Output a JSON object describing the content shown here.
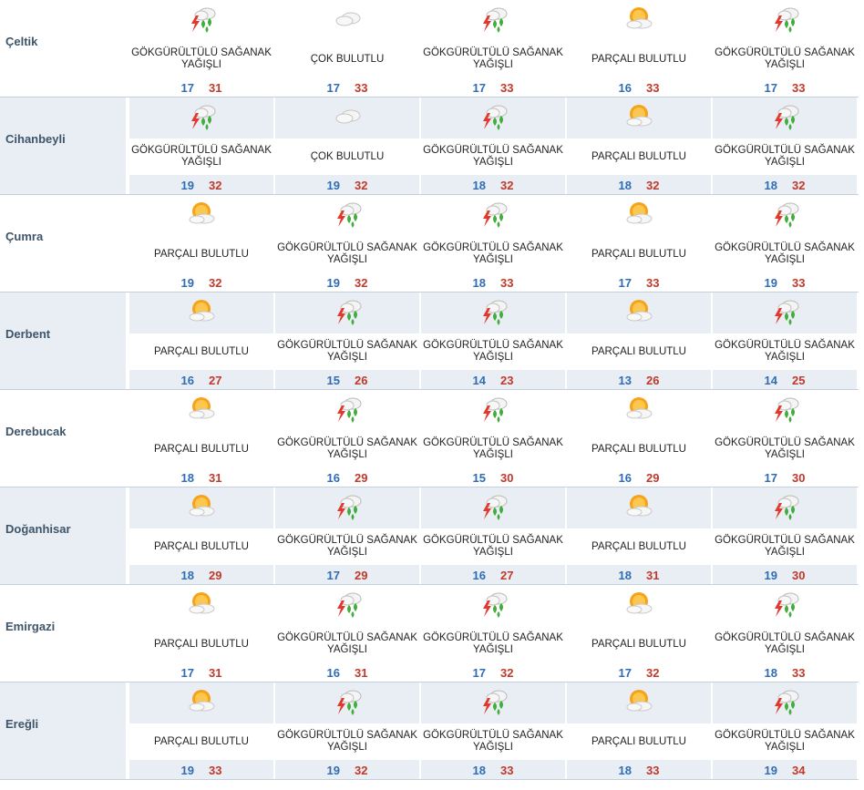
{
  "conditions": {
    "storm": "GÖKGÜRÜLTÜLÜ\nSAĞANAK YAĞIŞLI",
    "cloudy": "ÇOK BULUTLU",
    "partly": "PARÇALI BULUTLU"
  },
  "icons": {
    "storm": "thunderstorm-rain-icon",
    "cloudy": "cloud-icon",
    "partly": "sun-cloud-icon"
  },
  "rows": [
    {
      "city": "Çeltik",
      "days": [
        {
          "cond": "GÖKGÜRÜLTÜLÜ SAĞANAK YAĞIŞLI",
          "icon": "storm",
          "min": "17",
          "max": "31"
        },
        {
          "cond": "ÇOK BULUTLU",
          "icon": "cloudy",
          "min": "17",
          "max": "33"
        },
        {
          "cond": "GÖKGÜRÜLTÜLÜ SAĞANAK YAĞIŞLI",
          "icon": "storm",
          "min": "17",
          "max": "33"
        },
        {
          "cond": "PARÇALI BULUTLU",
          "icon": "partly",
          "min": "16",
          "max": "33"
        },
        {
          "cond": "GÖKGÜRÜLTÜLÜ SAĞANAK YAĞIŞLI",
          "icon": "storm",
          "min": "17",
          "max": "33"
        }
      ]
    },
    {
      "city": "Cihanbeyli",
      "days": [
        {
          "cond": "GÖKGÜRÜLTÜLÜ SAĞANAK YAĞIŞLI",
          "icon": "storm",
          "min": "19",
          "max": "32"
        },
        {
          "cond": "ÇOK BULUTLU",
          "icon": "cloudy",
          "min": "19",
          "max": "32"
        },
        {
          "cond": "GÖKGÜRÜLTÜLÜ SAĞANAK YAĞIŞLI",
          "icon": "storm",
          "min": "18",
          "max": "32"
        },
        {
          "cond": "PARÇALI BULUTLU",
          "icon": "partly",
          "min": "18",
          "max": "32"
        },
        {
          "cond": "GÖKGÜRÜLTÜLÜ SAĞANAK YAĞIŞLI",
          "icon": "storm",
          "min": "18",
          "max": "32"
        }
      ]
    },
    {
      "city": "Çumra",
      "days": [
        {
          "cond": "PARÇALI BULUTLU",
          "icon": "partly",
          "min": "19",
          "max": "32"
        },
        {
          "cond": "GÖKGÜRÜLTÜLÜ SAĞANAK YAĞIŞLI",
          "icon": "storm",
          "min": "19",
          "max": "32"
        },
        {
          "cond": "GÖKGÜRÜLTÜLÜ SAĞANAK YAĞIŞLI",
          "icon": "storm",
          "min": "18",
          "max": "33"
        },
        {
          "cond": "PARÇALI BULUTLU",
          "icon": "partly",
          "min": "17",
          "max": "33"
        },
        {
          "cond": "GÖKGÜRÜLTÜLÜ SAĞANAK YAĞIŞLI",
          "icon": "storm",
          "min": "19",
          "max": "33"
        }
      ]
    },
    {
      "city": "Derbent",
      "days": [
        {
          "cond": "PARÇALI BULUTLU",
          "icon": "partly",
          "min": "16",
          "max": "27"
        },
        {
          "cond": "GÖKGÜRÜLTÜLÜ SAĞANAK YAĞIŞLI",
          "icon": "storm",
          "min": "15",
          "max": "26"
        },
        {
          "cond": "GÖKGÜRÜLTÜLÜ SAĞANAK YAĞIŞLI",
          "icon": "storm",
          "min": "14",
          "max": "23"
        },
        {
          "cond": "PARÇALI BULUTLU",
          "icon": "partly",
          "min": "13",
          "max": "26"
        },
        {
          "cond": "GÖKGÜRÜLTÜLÜ SAĞANAK YAĞIŞLI",
          "icon": "storm",
          "min": "14",
          "max": "25"
        }
      ]
    },
    {
      "city": "Derebucak",
      "days": [
        {
          "cond": "PARÇALI BULUTLU",
          "icon": "partly",
          "min": "18",
          "max": "31"
        },
        {
          "cond": "GÖKGÜRÜLTÜLÜ SAĞANAK YAĞIŞLI",
          "icon": "storm",
          "min": "16",
          "max": "29"
        },
        {
          "cond": "GÖKGÜRÜLTÜLÜ SAĞANAK YAĞIŞLI",
          "icon": "storm",
          "min": "15",
          "max": "30"
        },
        {
          "cond": "PARÇALI BULUTLU",
          "icon": "partly",
          "min": "16",
          "max": "29"
        },
        {
          "cond": "GÖKGÜRÜLTÜLÜ SAĞANAK YAĞIŞLI",
          "icon": "storm",
          "min": "17",
          "max": "30"
        }
      ]
    },
    {
      "city": "Doğanhisar",
      "days": [
        {
          "cond": "PARÇALI BULUTLU",
          "icon": "partly",
          "min": "18",
          "max": "29"
        },
        {
          "cond": "GÖKGÜRÜLTÜLÜ SAĞANAK YAĞIŞLI",
          "icon": "storm",
          "min": "17",
          "max": "29"
        },
        {
          "cond": "GÖKGÜRÜLTÜLÜ SAĞANAK YAĞIŞLI",
          "icon": "storm",
          "min": "16",
          "max": "27"
        },
        {
          "cond": "PARÇALI BULUTLU",
          "icon": "partly",
          "min": "18",
          "max": "31"
        },
        {
          "cond": "GÖKGÜRÜLTÜLÜ SAĞANAK YAĞIŞLI",
          "icon": "storm",
          "min": "19",
          "max": "30"
        }
      ]
    },
    {
      "city": "Emirgazi",
      "days": [
        {
          "cond": "PARÇALI BULUTLU",
          "icon": "partly",
          "min": "17",
          "max": "31"
        },
        {
          "cond": "GÖKGÜRÜLTÜLÜ SAĞANAK YAĞIŞLI",
          "icon": "storm",
          "min": "16",
          "max": "31"
        },
        {
          "cond": "GÖKGÜRÜLTÜLÜ SAĞANAK YAĞIŞLI",
          "icon": "storm",
          "min": "17",
          "max": "32"
        },
        {
          "cond": "PARÇALI BULUTLU",
          "icon": "partly",
          "min": "17",
          "max": "32"
        },
        {
          "cond": "GÖKGÜRÜLTÜLÜ SAĞANAK YAĞIŞLI",
          "icon": "storm",
          "min": "18",
          "max": "33"
        }
      ]
    },
    {
      "city": "Ereğli",
      "days": [
        {
          "cond": "PARÇALI BULUTLU",
          "icon": "partly",
          "min": "19",
          "max": "33"
        },
        {
          "cond": "GÖKGÜRÜLTÜLÜ SAĞANAK YAĞIŞLI",
          "icon": "storm",
          "min": "19",
          "max": "32"
        },
        {
          "cond": "GÖKGÜRÜLTÜLÜ SAĞANAK YAĞIŞLI",
          "icon": "storm",
          "min": "18",
          "max": "33"
        },
        {
          "cond": "PARÇALI BULUTLU",
          "icon": "partly",
          "min": "18",
          "max": "33"
        },
        {
          "cond": "GÖKGÜRÜLTÜLÜ SAĞANAK YAĞIŞLI",
          "icon": "storm",
          "min": "19",
          "max": "34"
        }
      ]
    }
  ],
  "colors": {
    "shade": "#e9eef5",
    "min": "#2f6db5",
    "max": "#c0392b",
    "city": "#3e5569"
  }
}
